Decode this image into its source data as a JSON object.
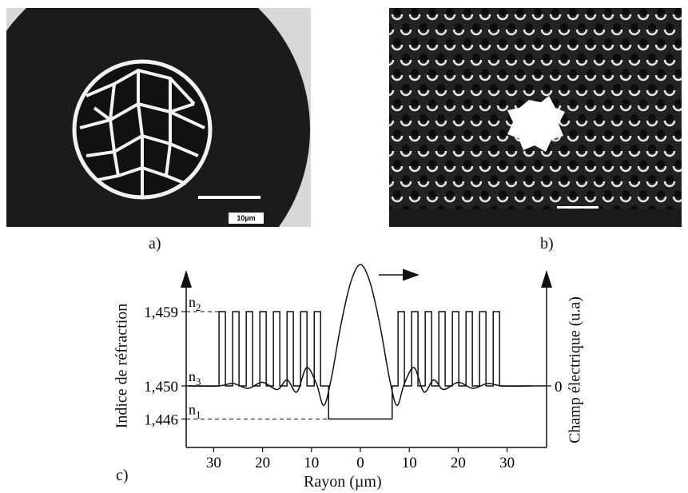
{
  "figure": {
    "panel_a": {
      "label": "a)",
      "scale_text": "10µm"
    },
    "panel_b": {
      "label": "b)"
    },
    "panel_c": {
      "label": "c)"
    }
  },
  "chart_data": {
    "type": "line",
    "xlabel": "Rayon (µm)",
    "ylabel_left": "Indice de réfraction",
    "ylabel_right": "Champ électrique (u.a)",
    "x_ticks": [
      "30",
      "20",
      "10",
      "0",
      "10",
      "20",
      "30"
    ],
    "x_tick_values": [
      -30,
      -20,
      -10,
      0,
      10,
      20,
      30
    ],
    "y_ticks": [
      "1,459",
      "1,450",
      "1,446"
    ],
    "y_tick_values": [
      1.459,
      1.45,
      1.446
    ],
    "y_right_ticks": [
      "0"
    ],
    "level_labels": {
      "n2": "n2",
      "n3": "n3",
      "n1": "n1"
    },
    "series": [
      {
        "name": "",
        "kind": "refractive-index-profile",
        "n_core": 1.446,
        "n_bragg_high": 1.459,
        "n_bragg_low": 1.45,
        "core_half_width": 6.5,
        "bragg_layers_per_side": 8,
        "bragg_period": 2.6,
        "bragg_end": 28.9
      },
      {
        "name": "",
        "kind": "electric-field",
        "x": [
          -35,
          -29,
          -26,
          -23,
          -20,
          -17,
          -15,
          -13,
          -11,
          -9,
          -7.5,
          -6,
          -4,
          -2,
          0,
          2,
          4,
          6,
          7.5,
          9,
          11,
          13,
          15,
          17,
          20,
          23,
          26,
          29,
          35
        ],
        "y": [
          0,
          0,
          0.02,
          -0.02,
          0.03,
          -0.03,
          0.05,
          -0.05,
          0.15,
          0.02,
          -0.16,
          0.05,
          0.5,
          0.85,
          1,
          0.85,
          0.5,
          0.05,
          -0.16,
          0.02,
          0.15,
          -0.05,
          0.05,
          -0.03,
          0.03,
          -0.02,
          0.02,
          0,
          0
        ]
      }
    ]
  }
}
